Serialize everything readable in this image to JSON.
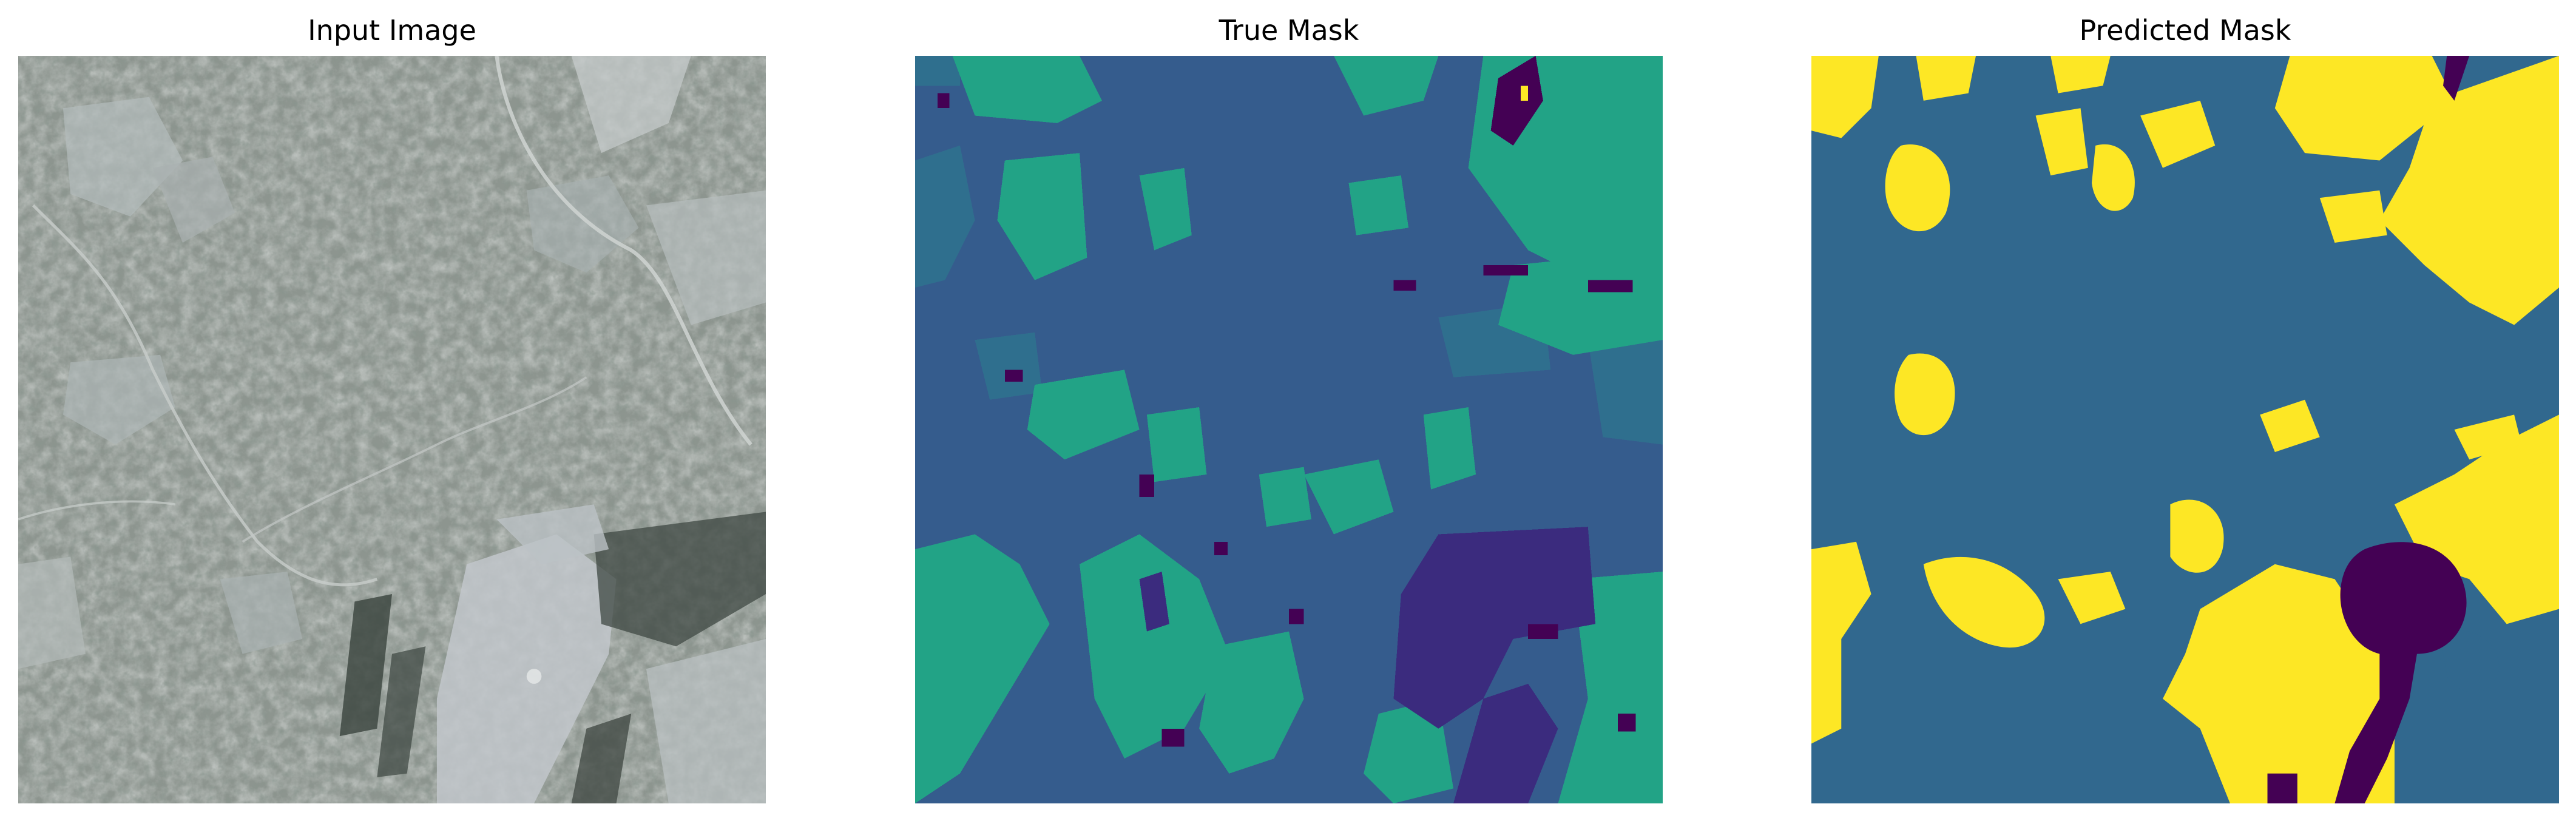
{
  "figure": {
    "panels": [
      {
        "title": "Input Image",
        "content": "aerial-photo"
      },
      {
        "title": "True Mask",
        "content": "segmentation-mask"
      },
      {
        "title": "Predicted Mask",
        "content": "segmentation-mask"
      }
    ]
  },
  "colors": {
    "class_dark_purple": "#440154",
    "class_indigo": "#3b2b7e",
    "class_blue": "#355c8d",
    "class_teal_blue": "#2f6f8e",
    "class_green": "#22a386",
    "class_yellow": "#fde725",
    "photo_base": "#8f9792"
  }
}
